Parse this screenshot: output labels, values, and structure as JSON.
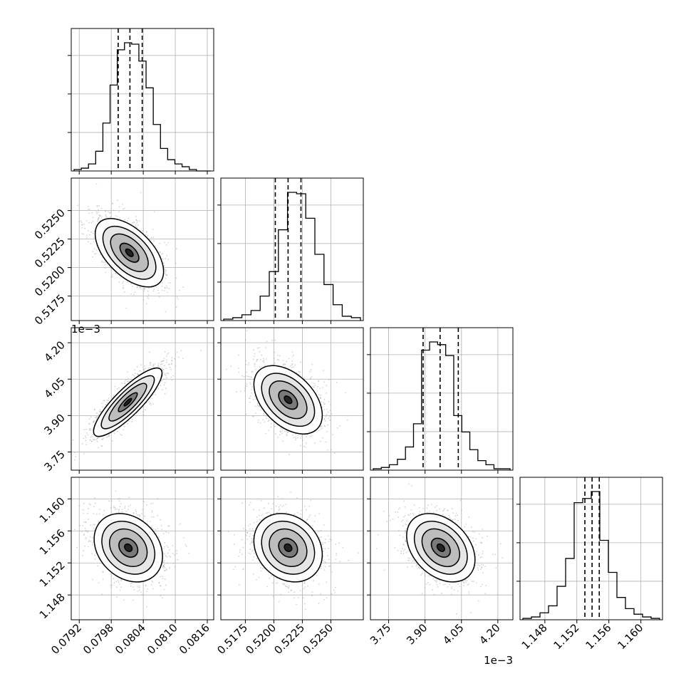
{
  "chart_data": {
    "type": "corner",
    "title": "",
    "grid": true,
    "parameters": [
      {
        "label": "",
        "range": [
          0.07905,
          0.08172
        ],
        "ticks": [
          0.0792,
          0.0798,
          0.0804,
          0.081,
          0.0816
        ],
        "tick_labels": [
          "0.0792",
          "0.0798",
          "0.0804",
          "0.0810",
          "0.0816"
        ],
        "quantiles": [
          0.07993,
          0.08015,
          0.08038
        ]
      },
      {
        "label": "",
        "range": [
          0.51535,
          0.52785
        ],
        "ticks": [
          0.5175,
          0.52,
          0.5225,
          0.525
        ],
        "tick_labels": [
          "0.5175",
          "0.5200",
          "0.5225",
          "0.5250"
        ],
        "quantiles": [
          0.52013,
          0.52125,
          0.52238
        ]
      },
      {
        "label": "",
        "offset_text": "1e−3",
        "range": [
          3.675,
          4.262
        ],
        "ticks": [
          3.75,
          3.9,
          4.05,
          4.2
        ],
        "tick_labels": [
          "3.75",
          "3.90",
          "4.05",
          "4.20"
        ],
        "quantiles": [
          3.892,
          3.962,
          4.037
        ]
      },
      {
        "label": "",
        "range": [
          1.1449,
          1.1627
        ],
        "ticks": [
          1.148,
          1.152,
          1.156,
          1.16
        ],
        "tick_labels": [
          "1.148",
          "1.152",
          "1.156",
          "1.160"
        ],
        "quantiles": [
          1.153,
          1.1539,
          1.1548
        ]
      }
    ],
    "histograms": [
      {
        "values": [
          1,
          2,
          5,
          14,
          34,
          61,
          86,
          91,
          90,
          78,
          59,
          33,
          16,
          8,
          5,
          3,
          1,
          0,
          0
        ]
      },
      {
        "values": [
          1,
          2,
          4,
          7,
          17,
          34,
          63,
          89,
          88,
          71,
          46,
          25,
          11,
          3,
          2
        ]
      },
      {
        "values": [
          1,
          2,
          4,
          8,
          17,
          34,
          88,
          94,
          92,
          84,
          40,
          28,
          15,
          7,
          4,
          1,
          1
        ]
      },
      {
        "values": [
          1,
          2,
          5,
          10,
          24,
          44,
          84,
          87,
          92,
          57,
          34,
          16,
          8,
          4,
          2,
          1
        ]
      }
    ],
    "pairs": [
      {
        "x": 0,
        "y": 1,
        "center": [
          0.08014,
          0.5213
        ],
        "correlation": -0.55
      },
      {
        "x": 0,
        "y": 2,
        "center": [
          0.08011,
          3.955
        ],
        "correlation": 0.85
      },
      {
        "x": 1,
        "y": 2,
        "center": [
          0.52125,
          3.965
        ],
        "correlation": -0.45
      },
      {
        "x": 0,
        "y": 3,
        "center": [
          0.08012,
          1.1539
        ],
        "correlation": -0.25
      },
      {
        "x": 1,
        "y": 3,
        "center": [
          0.52125,
          1.1539
        ],
        "correlation": -0.2
      },
      {
        "x": 2,
        "y": 3,
        "center": [
          3.965,
          1.1539
        ],
        "correlation": -0.35
      }
    ]
  },
  "colors": {
    "line": "#000000",
    "grid": "#b0b0b0",
    "points": "#9e9e9e",
    "density": "#000000"
  }
}
